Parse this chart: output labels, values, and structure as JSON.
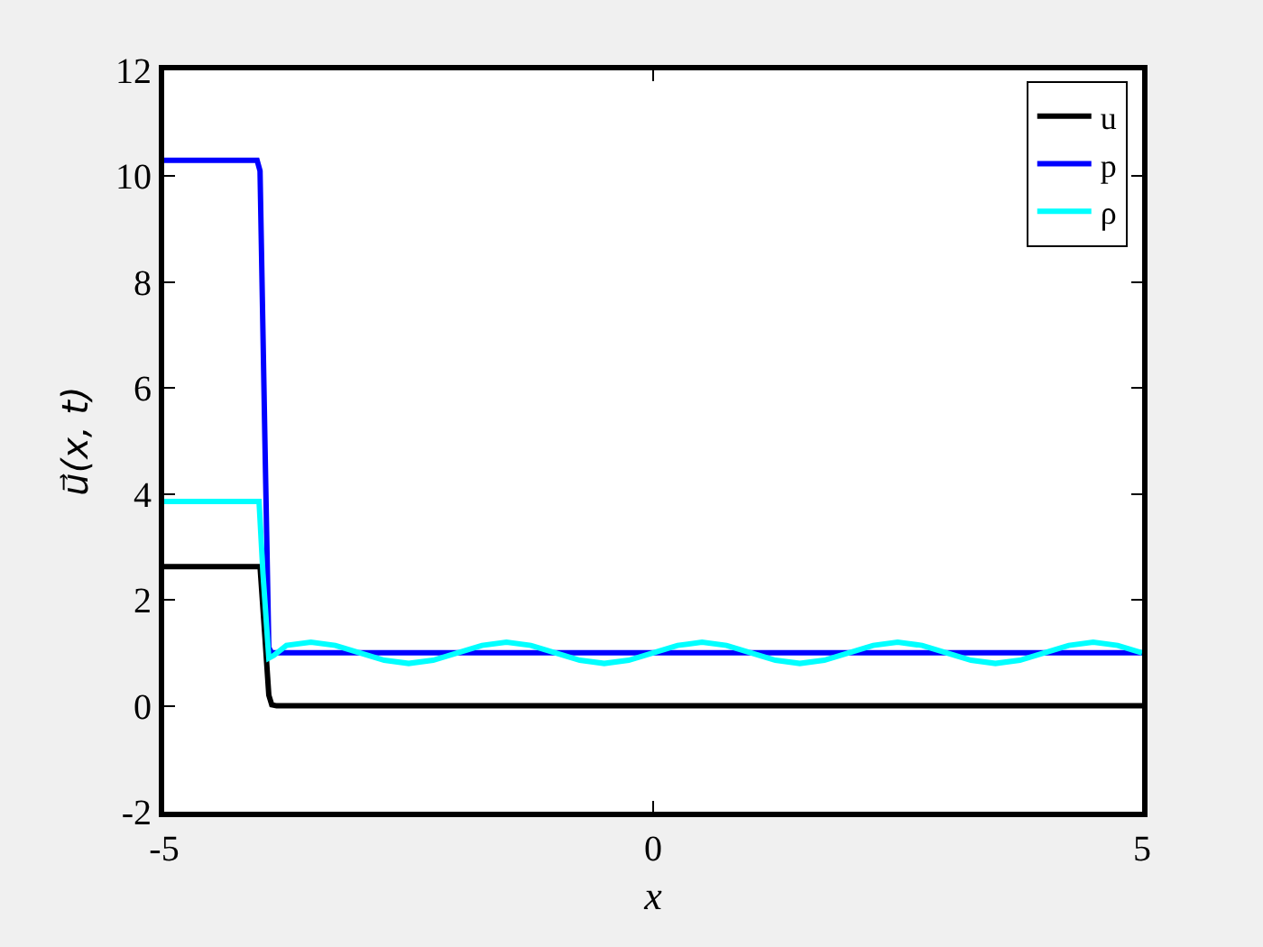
{
  "chart_data": {
    "type": "line",
    "xlabel": "x",
    "ylabel": "u⃗(x, t)",
    "xlim": [
      -5,
      5
    ],
    "ylim": [
      -2,
      12
    ],
    "xticks": [
      -5,
      0,
      5
    ],
    "yticks": [
      -2,
      0,
      2,
      4,
      6,
      8,
      10,
      12
    ],
    "grid": false,
    "legend": "top right",
    "marker": "none",
    "line_style": "solid",
    "series": [
      {
        "name": "u",
        "color": "#000000",
        "x": [
          -5,
          -4.02,
          -3.97,
          -3.93,
          -3.9,
          -3.85,
          5
        ],
        "values": [
          2.63,
          2.63,
          1.3,
          0.2,
          0.02,
          0,
          0
        ]
      },
      {
        "name": "p",
        "color": "#0000ff",
        "x": [
          -5,
          -4.05,
          -4.02,
          -3.97,
          -3.93,
          -3.9,
          5
        ],
        "values": [
          10.3,
          10.3,
          10.1,
          5,
          1.1,
          1,
          1
        ]
      },
      {
        "name": "ρ",
        "color": "#00ffff",
        "x": [
          -5,
          -4.03,
          -3.99,
          -3.93,
          -3.88,
          -3.75,
          -3.5,
          -3.25,
          -3,
          -2.75,
          -2.5,
          -2.25,
          -2,
          -1.75,
          -1.5,
          -1.25,
          -1,
          -0.75,
          -0.5,
          -0.25,
          0,
          0.25,
          0.5,
          0.75,
          1,
          1.25,
          1.5,
          1.75,
          2,
          2.25,
          2.5,
          2.75,
          3,
          3.25,
          3.5,
          3.75,
          4,
          4.25,
          4.5,
          4.75,
          5
        ],
        "values": [
          3.86,
          3.86,
          2.5,
          0.9,
          0.95,
          1.14,
          1.2,
          1.14,
          1.0,
          0.86,
          0.8,
          0.86,
          1.0,
          1.14,
          1.2,
          1.14,
          1.0,
          0.86,
          0.8,
          0.86,
          1.0,
          1.14,
          1.2,
          1.14,
          1.0,
          0.86,
          0.8,
          0.86,
          1.0,
          1.14,
          1.2,
          1.14,
          1.0,
          0.86,
          0.8,
          0.86,
          1.0,
          1.14,
          1.2,
          1.14,
          1.0
        ]
      }
    ]
  }
}
